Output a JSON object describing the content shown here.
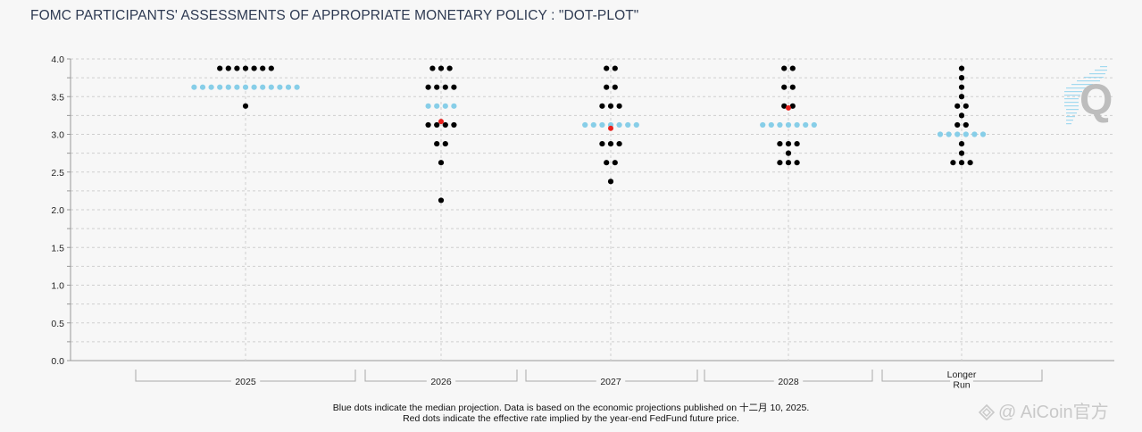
{
  "title": "FOMC PARTICIPANTS' ASSESSMENTS OF APPROPRIATE MONETARY POLICY : \"DOT-PLOT\"",
  "footnote": {
    "line1": "Blue dots indicate the median projection. Data is based on the economic projections published on 十二月 10, 2025.",
    "line2": "Red dots indicate the effective rate implied by the year-end FedFund future price."
  },
  "watermark": "AiCoin官方",
  "logo_letter": "Q",
  "colors": {
    "participant": "#000000",
    "median": "#87cee8",
    "implied": "#e8201c",
    "grid": "#cfcfcf",
    "axis": "#999999"
  },
  "chart_data": {
    "type": "scatter",
    "ylim": [
      0,
      4
    ],
    "yticks": [
      "0.0",
      "0.5",
      "1.0",
      "1.5",
      "2.0",
      "2.5",
      "3.0",
      "3.5",
      "4.0"
    ],
    "grid": true,
    "categories": [
      "2025",
      "2026",
      "2027",
      "2028",
      "Longer Run"
    ],
    "category_labels": [
      [
        "2025"
      ],
      [
        "2026"
      ],
      [
        "2027"
      ],
      [
        "2028"
      ],
      [
        "Longer",
        "Run"
      ]
    ],
    "series": [
      {
        "role": "participant",
        "dots": [
          [
            [
              3.875,
              7
            ],
            [
              3.375,
              1
            ]
          ],
          [
            [
              3.875,
              3
            ],
            [
              3.625,
              4
            ],
            [
              3.125,
              4
            ],
            [
              2.875,
              2
            ],
            [
              2.625,
              1
            ],
            [
              2.125,
              1
            ]
          ],
          [
            [
              3.875,
              2
            ],
            [
              3.625,
              2
            ],
            [
              3.375,
              3
            ],
            [
              2.875,
              3
            ],
            [
              2.625,
              2
            ],
            [
              2.375,
              1
            ]
          ],
          [
            [
              3.875,
              2
            ],
            [
              3.625,
              2
            ],
            [
              3.375,
              2
            ],
            [
              2.875,
              3
            ],
            [
              2.75,
              1
            ],
            [
              2.625,
              3
            ]
          ],
          [
            [
              3.875,
              1
            ],
            [
              3.75,
              1
            ],
            [
              3.625,
              1
            ],
            [
              3.5,
              1
            ],
            [
              3.375,
              2
            ],
            [
              3.25,
              1
            ],
            [
              3.125,
              2
            ],
            [
              2.875,
              1
            ],
            [
              2.75,
              1
            ],
            [
              2.625,
              3
            ]
          ]
        ]
      },
      {
        "role": "median",
        "dots": [
          [
            [
              3.625,
              13
            ]
          ],
          [
            [
              3.375,
              4
            ]
          ],
          [
            [
              3.125,
              7
            ]
          ],
          [
            [
              3.125,
              7
            ]
          ],
          [
            [
              3.0,
              6
            ]
          ]
        ]
      },
      {
        "role": "implied",
        "values": [
          null,
          3.17,
          3.08,
          3.35,
          null
        ]
      }
    ]
  }
}
